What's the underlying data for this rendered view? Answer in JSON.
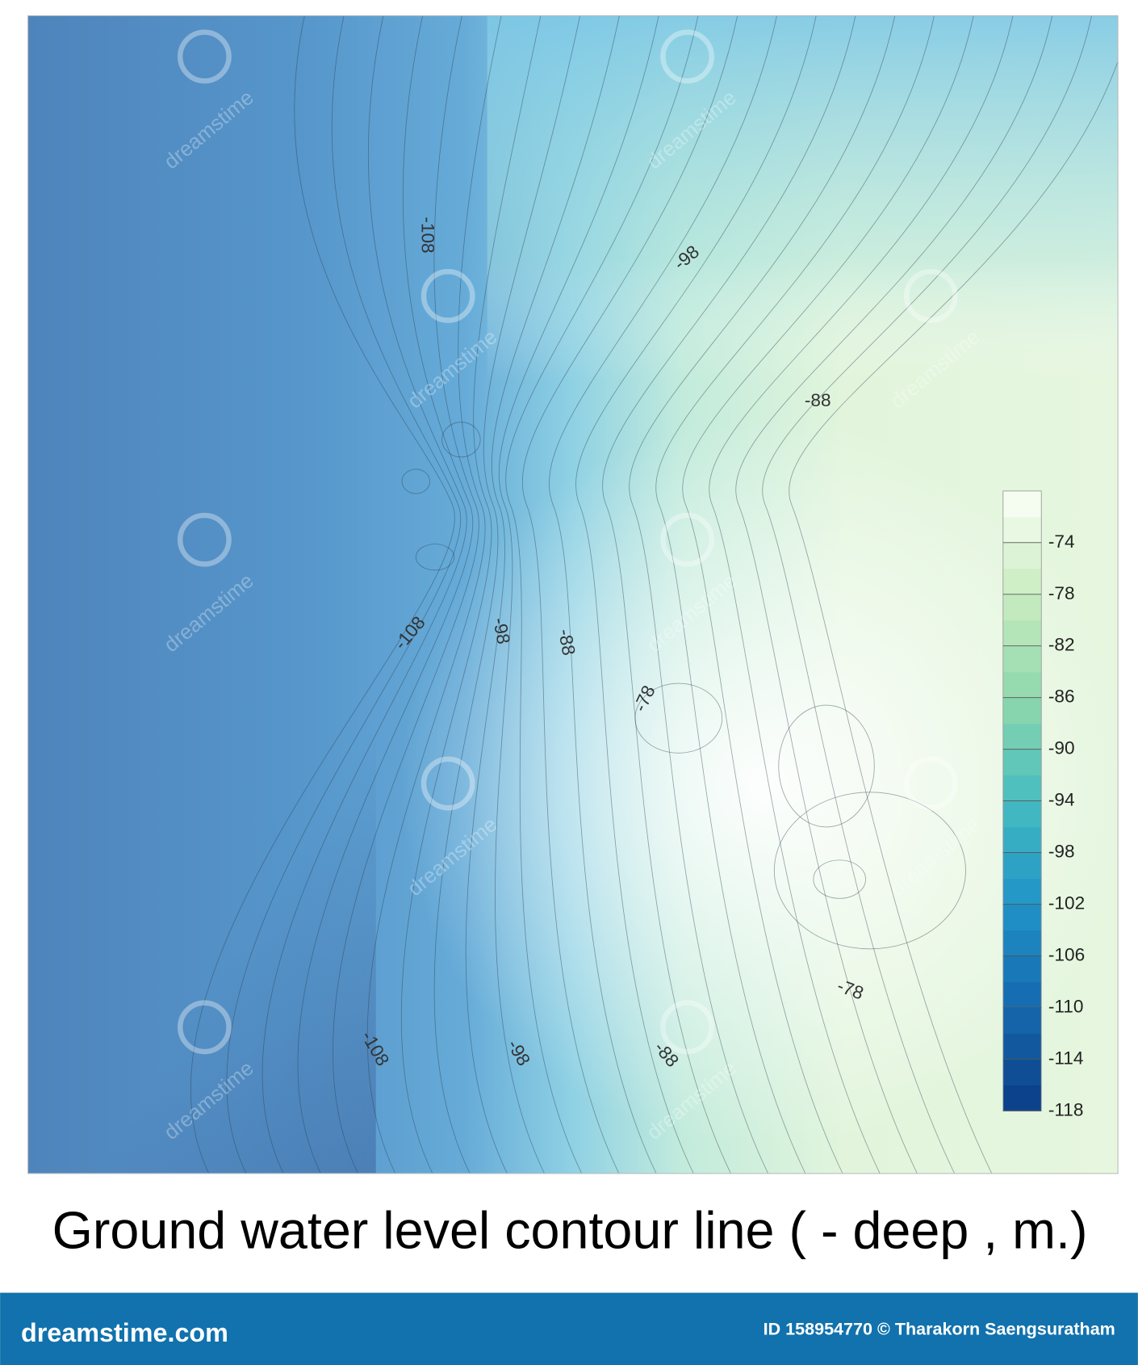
{
  "chart_data": {
    "type": "contour",
    "title": "Ground water level contour line ( - deep , m.)",
    "contour_labels": [
      -108,
      -98,
      -88,
      -108,
      -98,
      -88,
      -78,
      -108,
      -98,
      -88,
      -78
    ],
    "clim": [
      -118,
      -70
    ],
    "cticks": [
      -74,
      -78,
      -82,
      -86,
      -90,
      -94,
      -98,
      -102,
      -106,
      -110,
      -114,
      -118
    ],
    "colormap": [
      "#0a3d86",
      "#1668ae",
      "#1f93c8",
      "#46bcc0",
      "#8fd8ad",
      "#c9edc0",
      "#fbfff8"
    ]
  },
  "watermark": "dreamstime",
  "footer": {
    "site": "dreamstime.com",
    "credit": "ID 158954770 © Tharakorn Saengsuratham"
  }
}
